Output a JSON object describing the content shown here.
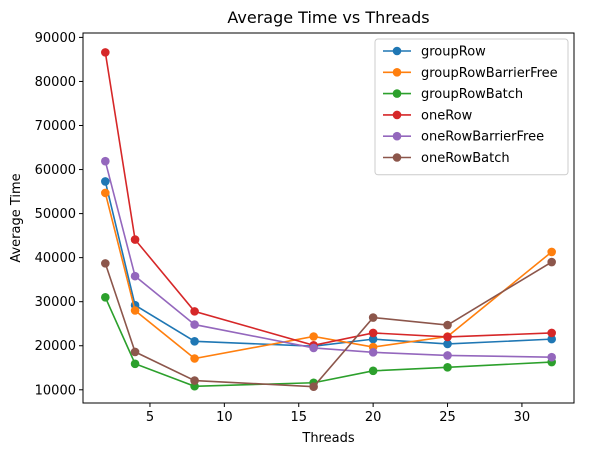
{
  "chart_data": {
    "type": "line",
    "title": "Average Time vs Threads",
    "xlabel": "Threads",
    "ylabel": "Average Time",
    "xlim": [
      0.5,
      33.5
    ],
    "ylim": [
      7000,
      91000
    ],
    "xticks": [
      5,
      10,
      15,
      20,
      25,
      30
    ],
    "yticks": [
      10000,
      20000,
      30000,
      40000,
      50000,
      60000,
      70000,
      80000,
      90000
    ],
    "grid": false,
    "legend_position": "top-right",
    "x": [
      2,
      4,
      8,
      16,
      20,
      25,
      32
    ],
    "series": [
      {
        "name": "groupRow",
        "color": "#1f77b4",
        "values": [
          57300,
          29200,
          21000,
          19900,
          21500,
          20400,
          21500
        ]
      },
      {
        "name": "groupRowBarrierFree",
        "color": "#ff7f0e",
        "values": [
          54700,
          28000,
          17100,
          22100,
          19700,
          22100,
          41300
        ]
      },
      {
        "name": "groupRowBatch",
        "color": "#2ca02c",
        "values": [
          31000,
          15900,
          10800,
          11600,
          14300,
          15100,
          16300
        ]
      },
      {
        "name": "oneRow",
        "color": "#d62728",
        "values": [
          86600,
          44100,
          27800,
          20100,
          22900,
          22000,
          22900
        ]
      },
      {
        "name": "oneRowBarrierFree",
        "color": "#9467bd",
        "values": [
          61900,
          35800,
          24800,
          19500,
          18500,
          17800,
          17400
        ]
      },
      {
        "name": "oneRowBatch",
        "color": "#8c564b",
        "values": [
          38700,
          18600,
          12100,
          10700,
          26400,
          24700,
          39000
        ]
      }
    ]
  }
}
